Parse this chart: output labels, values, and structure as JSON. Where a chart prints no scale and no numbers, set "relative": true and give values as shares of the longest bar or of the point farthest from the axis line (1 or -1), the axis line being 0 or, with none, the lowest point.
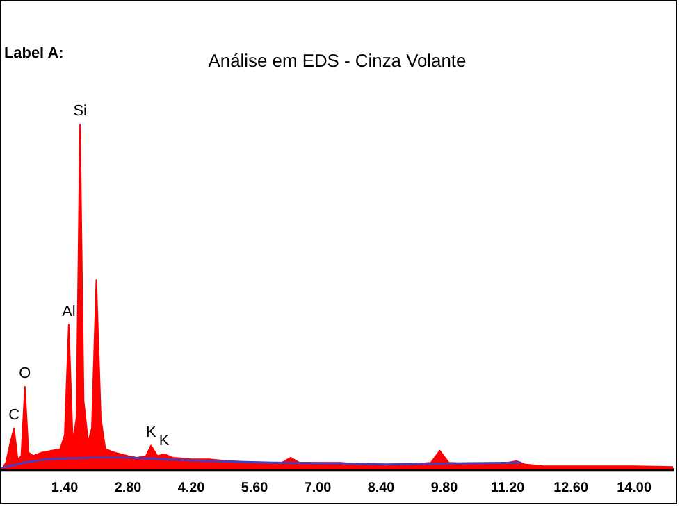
{
  "chart_data": {
    "type": "area",
    "title": "Análise em EDS - Cinza Volante",
    "relative": true,
    "xlim": [
      0,
      14.86
    ],
    "xticks": [
      {
        "value": 1.4,
        "label": "1.40"
      },
      {
        "value": 2.8,
        "label": "2.80"
      },
      {
        "value": 4.2,
        "label": "4.20"
      },
      {
        "value": 5.6,
        "label": "5.60"
      },
      {
        "value": 7,
        "label": "7.00"
      },
      {
        "value": 8.4,
        "label": "8.40"
      },
      {
        "value": 9.8,
        "label": "9.80"
      },
      {
        "value": 11.2,
        "label": "11.20"
      },
      {
        "value": 12.6,
        "label": "12.60"
      },
      {
        "value": 14,
        "label": "14.00"
      }
    ],
    "series": [
      {
        "type": "area",
        "color": "#ff0000",
        "x": [
          0,
          0.1,
          0.2,
          0.28,
          0.36,
          0.44,
          0.52,
          0.6,
          0.7,
          0.9,
          1.1,
          1.3,
          1.4,
          1.49,
          1.58,
          1.66,
          1.74,
          1.82,
          1.92,
          2.0,
          2.1,
          2.2,
          2.3,
          2.5,
          2.8,
          3.0,
          3.2,
          3.31,
          3.45,
          3.6,
          3.8,
          4.2,
          4.6,
          5.0,
          5.6,
          6.2,
          6.4,
          6.6,
          7.0,
          7.5,
          8.0,
          8.5,
          9.0,
          9.5,
          9.7,
          9.9,
          10.5,
          11.0,
          11.4,
          11.6,
          12.0,
          13.0,
          14.0,
          14.86
        ],
        "values": [
          0,
          0.02,
          0.08,
          0.12,
          0.03,
          0.04,
          0.24,
          0.05,
          0.04,
          0.05,
          0.055,
          0.06,
          0.1,
          0.42,
          0.08,
          0.15,
          1,
          0.2,
          0.08,
          0.12,
          0.55,
          0.15,
          0.06,
          0.05,
          0.04,
          0.035,
          0.04,
          0.07,
          0.04,
          0.045,
          0.035,
          0.03,
          0.03,
          0.025,
          0.02,
          0.02,
          0.035,
          0.02,
          0.02,
          0.02,
          0.015,
          0.01,
          0.015,
          0.02,
          0.055,
          0.02,
          0.015,
          0.015,
          0.025,
          0.015,
          0.01,
          0.01,
          0.01,
          0.008
        ]
      },
      {
        "type": "line",
        "color": "#4040c0",
        "x": [
          0,
          0.5,
          1,
          2,
          2.8,
          3.6,
          4.5,
          6,
          7.5,
          8.5,
          10,
          11.5
        ],
        "values": [
          0.005,
          0.02,
          0.03,
          0.035,
          0.035,
          0.03,
          0.025,
          0.02,
          0.018,
          0.015,
          0.018,
          0.02
        ]
      }
    ],
    "marker": "none",
    "line_style": "solid",
    "grid": false,
    "legend": false,
    "annotations": [
      "Label A:",
      {
        "text": "C",
        "x": 0.28,
        "y": 0.12
      },
      {
        "text": "O",
        "x": 0.52,
        "y": 0.24
      },
      {
        "text": "Al",
        "x": 1.49,
        "y": 0.42
      },
      {
        "text": "Si",
        "x": 1.74,
        "y": 1
      },
      {
        "text": "K",
        "x": 3.31,
        "y": 0.07
      },
      {
        "text": "K",
        "x": 3.6,
        "y": 0.045
      }
    ]
  }
}
